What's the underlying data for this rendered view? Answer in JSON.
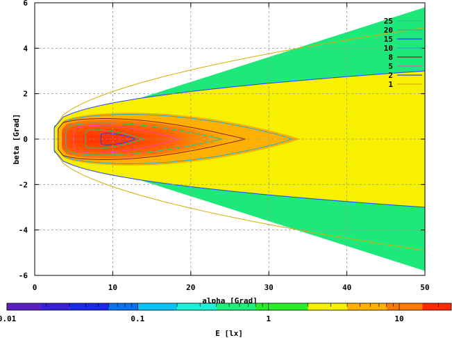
{
  "chart_data": {
    "type": "heatmap",
    "x": {
      "label": "alpha [Grad]",
      "range": [
        0,
        50
      ],
      "ticks": [
        0,
        10,
        20,
        30,
        40,
        50
      ],
      "tick_labels": [
        "0",
        "10",
        "20",
        "30",
        "40",
        "50"
      ]
    },
    "y": {
      "label": "beta [Grad]",
      "range": [
        6,
        -6
      ],
      "ticks": [
        -6,
        -4,
        -2,
        0,
        2,
        4,
        6
      ],
      "tick_labels": [
        "-6",
        "-4",
        "-2",
        "0",
        "2",
        "4",
        "6"
      ]
    },
    "grid": true,
    "colorbar": {
      "label": "E [lx]",
      "scale": "log",
      "range": [
        0.01,
        25
      ],
      "tick_labels": [
        "0.01",
        "0.1",
        "1",
        "10"
      ],
      "tick_values": [
        0.01,
        0.1,
        1,
        10
      ],
      "band_colors": [
        {
          "from": 0.01,
          "to": 0.018,
          "color": "#5a1fbf"
        },
        {
          "from": 0.018,
          "to": 0.03,
          "color": "#3a1fd8"
        },
        {
          "from": 0.03,
          "to": 0.06,
          "color": "#1a2ae8"
        },
        {
          "from": 0.06,
          "to": 0.1,
          "color": "#0a74f0"
        },
        {
          "from": 0.1,
          "to": 0.2,
          "color": "#09c4f5"
        },
        {
          "from": 0.2,
          "to": 0.4,
          "color": "#1df0d8"
        },
        {
          "from": 0.4,
          "to": 0.8,
          "color": "#1fef7d"
        },
        {
          "from": 0.8,
          "to": 2.0,
          "color": "#28ee28"
        },
        {
          "from": 2.0,
          "to": 4.0,
          "color": "#f5f200"
        },
        {
          "from": 4.0,
          "to": 8.0,
          "color": "#ffb000"
        },
        {
          "from": 8.0,
          "to": 15.0,
          "color": "#ff7a00"
        },
        {
          "from": 15.0,
          "to": 25.0,
          "color": "#ff2a00"
        }
      ]
    },
    "legend": {
      "position": "top-right",
      "entries": [
        {
          "label": "25",
          "color": "#2ec090"
        },
        {
          "label": "20",
          "color": "#20c080"
        },
        {
          "label": "15",
          "color": "#2040ff"
        },
        {
          "label": "10",
          "color": "#20b0d0"
        },
        {
          "label": "8",
          "color": "#8b1a1a"
        },
        {
          "label": "5",
          "color": "#ff40c0"
        },
        {
          "label": "2",
          "color": "#2040ff"
        },
        {
          "label": "1",
          "color": "#d4b000"
        }
      ]
    },
    "regions": [
      {
        "level": "<1",
        "color": "#1fe87a",
        "alpha_range": [
          2.5,
          50
        ],
        "beta_half_width": [
          0.6,
          5.8
        ]
      },
      {
        "level": "1-2",
        "color": "#f7f000",
        "alpha_range": [
          2.5,
          50
        ],
        "beta_half_width": [
          0.5,
          3.0
        ]
      },
      {
        "level": "2-5",
        "color": "#ffb000",
        "alpha_range": [
          3,
          34
        ],
        "beta_half_width": [
          0.5,
          1.7
        ]
      },
      {
        "level": "5-10",
        "color": "#ff6a00",
        "alpha_range": [
          3,
          26
        ],
        "beta_half_width": [
          0.45,
          1.2
        ]
      },
      {
        "level": ">10",
        "color": "#ff3200",
        "alpha_range": [
          3.5,
          18
        ],
        "beta_half_width": [
          0.4,
          0.8
        ]
      }
    ]
  }
}
